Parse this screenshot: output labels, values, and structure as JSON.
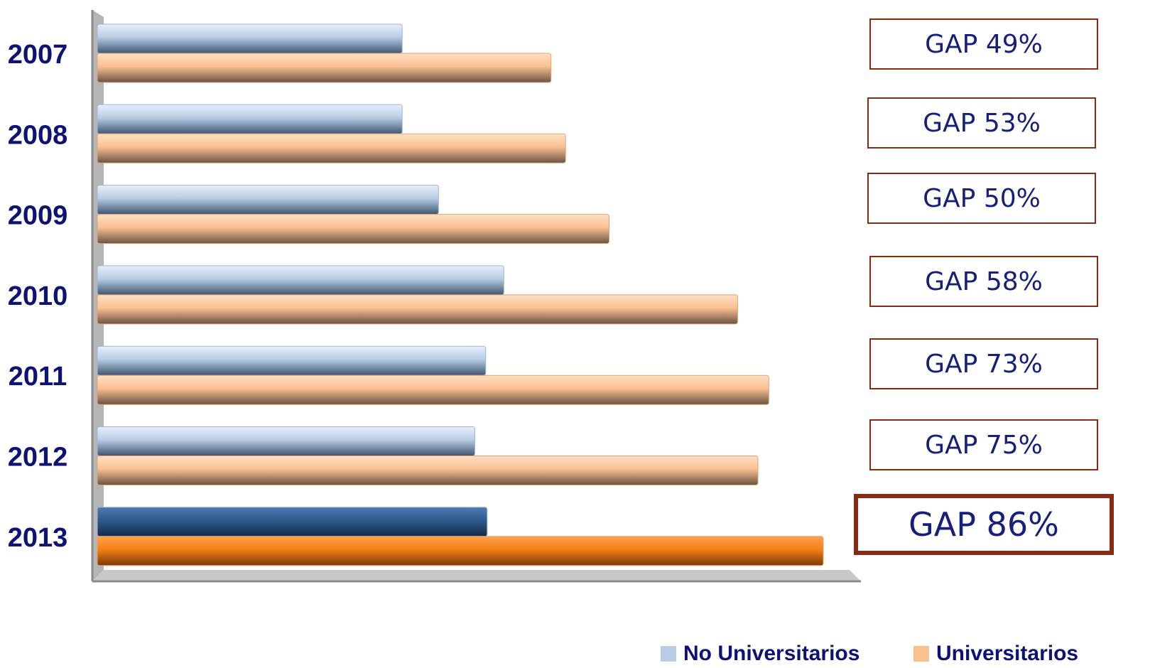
{
  "chart_data": {
    "type": "bar",
    "orientation": "horizontal",
    "categories": [
      "2007",
      "2008",
      "2009",
      "2010",
      "2011",
      "2012",
      "2013"
    ],
    "series": [
      {
        "name": "No Universitarios",
        "values": [
          42,
          42,
          47,
          56,
          53.5,
          52,
          53.7
        ],
        "color": "#b8cce4"
      },
      {
        "name": "Universitarios",
        "values": [
          62.5,
          64.5,
          70.5,
          88.2,
          92.5,
          91,
          100
        ],
        "color": "#fac090"
      }
    ],
    "highlight": {
      "category": "2013",
      "colors": [
        "#2e5b8e",
        "#f57f17"
      ]
    },
    "annotations": [
      "GAP 49%",
      "GAP 53%",
      "GAP 50%",
      "GAP 58%",
      "GAP 73%",
      "GAP 75%",
      "GAP 86%"
    ],
    "legend_position": "bottom-right",
    "grid": false,
    "xlim": [
      0,
      100
    ]
  },
  "legend": {
    "items": [
      {
        "label": "No Universitarios",
        "color": "#b8cce4"
      },
      {
        "label": "Universitarios",
        "color": "#fac090"
      }
    ]
  },
  "colors": {
    "axis": "#9c9c9c",
    "label_text": "#0d1275",
    "box_border": "#8b2a12"
  }
}
